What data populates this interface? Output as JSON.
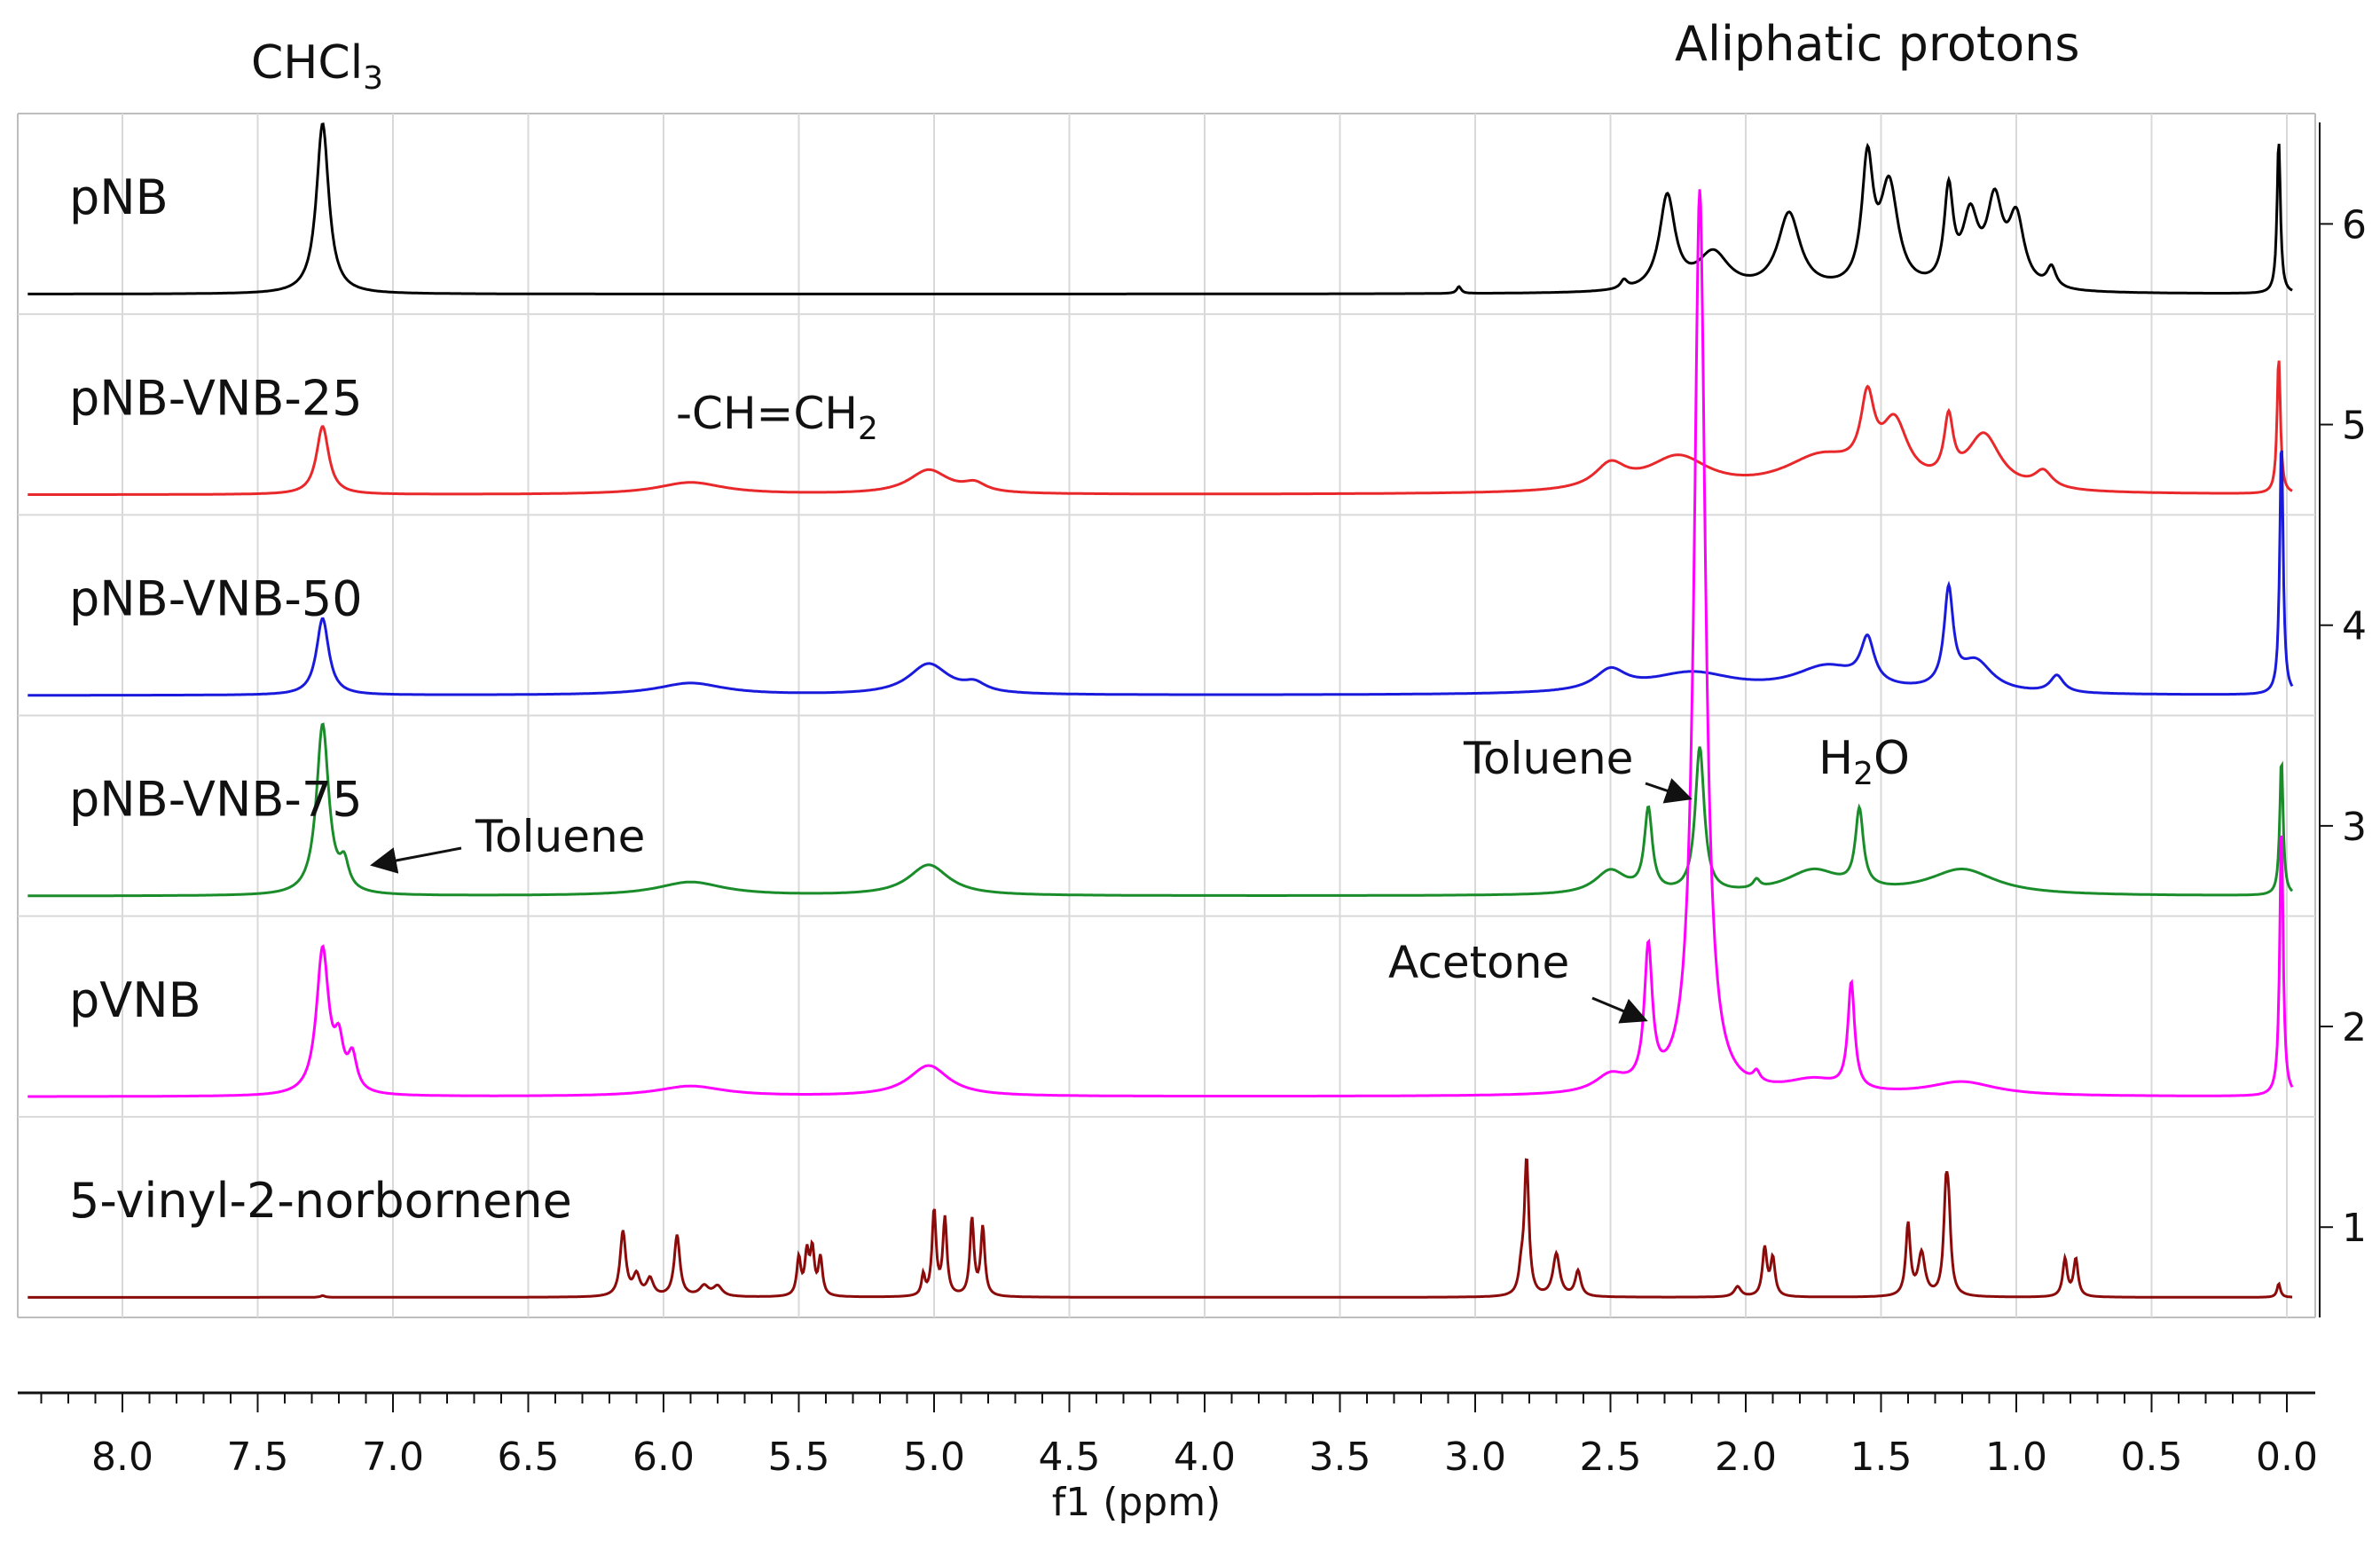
{
  "chart_data": {
    "type": "line",
    "title": "",
    "xlabel": "f1 (ppm)",
    "ylabel": "",
    "xlim": [
      8.35,
      -0.05
    ],
    "x_ticks": [
      "8.0",
      "7.5",
      "7.0",
      "6.5",
      "6.0",
      "5.5",
      "5.0",
      "4.5",
      "4.0",
      "3.5",
      "3.0",
      "2.5",
      "2.0",
      "1.5",
      "1.0",
      "0.5",
      "0.0"
    ],
    "x_tick_values": [
      8.0,
      7.5,
      7.0,
      6.5,
      6.0,
      5.5,
      5.0,
      4.5,
      4.0,
      3.5,
      3.0,
      2.5,
      2.0,
      1.5,
      1.0,
      0.5,
      0.0
    ],
    "right_ticks": [
      "1",
      "2",
      "3",
      "4",
      "5",
      "6"
    ],
    "grid": true,
    "series": [
      {
        "name": "pNB",
        "track": 6,
        "color": "#000000",
        "peaks": [
          [
            7.26,
            0.055,
            1.0
          ],
          [
            3.06,
            0.02,
            0.04
          ],
          [
            2.45,
            0.03,
            0.05
          ],
          [
            2.29,
            0.07,
            0.55
          ],
          [
            2.12,
            0.14,
            0.22
          ],
          [
            1.84,
            0.1,
            0.45
          ],
          [
            1.55,
            0.05,
            0.72
          ],
          [
            1.47,
            0.08,
            0.6
          ],
          [
            1.25,
            0.04,
            0.55
          ],
          [
            1.17,
            0.07,
            0.4
          ],
          [
            1.08,
            0.07,
            0.48
          ],
          [
            1.0,
            0.07,
            0.4
          ],
          [
            0.87,
            0.04,
            0.12
          ],
          [
            0.03,
            0.015,
            0.9
          ]
        ]
      },
      {
        "name": "pNB-VNB-25",
        "track": 5,
        "color": "#e8282a",
        "peaks": [
          [
            7.26,
            0.055,
            0.4
          ],
          [
            5.9,
            0.3,
            0.07
          ],
          [
            5.02,
            0.18,
            0.14
          ],
          [
            4.85,
            0.1,
            0.05
          ],
          [
            2.5,
            0.14,
            0.14
          ],
          [
            2.25,
            0.28,
            0.2
          ],
          [
            1.72,
            0.35,
            0.2
          ],
          [
            1.55,
            0.06,
            0.42
          ],
          [
            1.45,
            0.12,
            0.35
          ],
          [
            1.25,
            0.04,
            0.35
          ],
          [
            1.12,
            0.15,
            0.32
          ],
          [
            0.9,
            0.08,
            0.1
          ],
          [
            0.03,
            0.015,
            0.8
          ]
        ]
      },
      {
        "name": "pNB-VNB-50",
        "track": 4,
        "color": "#1a1adc",
        "peaks": [
          [
            7.26,
            0.055,
            0.45
          ],
          [
            5.9,
            0.3,
            0.07
          ],
          [
            5.02,
            0.18,
            0.18
          ],
          [
            4.85,
            0.1,
            0.05
          ],
          [
            2.5,
            0.14,
            0.12
          ],
          [
            2.2,
            0.4,
            0.12
          ],
          [
            1.7,
            0.3,
            0.15
          ],
          [
            1.55,
            0.06,
            0.26
          ],
          [
            1.25,
            0.04,
            0.56
          ],
          [
            1.15,
            0.15,
            0.18
          ],
          [
            0.85,
            0.06,
            0.1
          ],
          [
            0.02,
            0.015,
            1.5
          ]
        ]
      },
      {
        "name": "pNB-VNB-75",
        "track": 3,
        "color": "#1a8c2a",
        "peaks": [
          [
            7.26,
            0.055,
            1.0
          ],
          [
            7.18,
            0.04,
            0.15
          ],
          [
            5.9,
            0.3,
            0.08
          ],
          [
            5.02,
            0.18,
            0.18
          ],
          [
            2.5,
            0.14,
            0.14
          ],
          [
            2.36,
            0.035,
            0.48
          ],
          [
            2.17,
            0.04,
            0.85
          ],
          [
            1.96,
            0.03,
            0.05
          ],
          [
            1.75,
            0.25,
            0.14
          ],
          [
            1.58,
            0.035,
            0.45
          ],
          [
            1.2,
            0.3,
            0.15
          ],
          [
            0.02,
            0.015,
            0.8
          ]
        ]
      },
      {
        "name": "pVNB",
        "track": 2,
        "color": "#ff00ff",
        "peaks": [
          [
            7.26,
            0.055,
            0.85
          ],
          [
            7.2,
            0.04,
            0.25
          ],
          [
            7.15,
            0.04,
            0.2
          ],
          [
            5.9,
            0.3,
            0.06
          ],
          [
            5.02,
            0.18,
            0.18
          ],
          [
            2.5,
            0.14,
            0.1
          ],
          [
            2.36,
            0.035,
            0.8
          ],
          [
            2.17,
            0.05,
            5.3
          ],
          [
            1.96,
            0.03,
            0.06
          ],
          [
            1.75,
            0.25,
            0.08
          ],
          [
            1.61,
            0.03,
            0.62
          ],
          [
            1.2,
            0.3,
            0.08
          ],
          [
            0.02,
            0.015,
            1.6
          ]
        ]
      },
      {
        "name": "5-vinyl-2-norbornene",
        "track": 1,
        "color": "#8b0a0a",
        "peaks": [
          [
            7.26,
            0.02,
            0.01
          ],
          [
            6.15,
            0.025,
            0.38
          ],
          [
            6.1,
            0.03,
            0.12
          ],
          [
            6.05,
            0.03,
            0.1
          ],
          [
            5.95,
            0.025,
            0.36
          ],
          [
            5.85,
            0.04,
            0.06
          ],
          [
            5.8,
            0.04,
            0.06
          ],
          [
            5.5,
            0.018,
            0.22
          ],
          [
            5.47,
            0.018,
            0.24
          ],
          [
            5.45,
            0.018,
            0.26
          ],
          [
            5.42,
            0.018,
            0.22
          ],
          [
            5.04,
            0.015,
            0.12
          ],
          [
            5.0,
            0.018,
            0.5
          ],
          [
            4.96,
            0.018,
            0.45
          ],
          [
            4.86,
            0.018,
            0.45
          ],
          [
            4.82,
            0.018,
            0.4
          ],
          [
            2.83,
            0.02,
            0.12
          ],
          [
            2.81,
            0.02,
            0.8
          ],
          [
            2.7,
            0.03,
            0.25
          ],
          [
            2.62,
            0.025,
            0.15
          ],
          [
            2.03,
            0.03,
            0.06
          ],
          [
            1.93,
            0.02,
            0.28
          ],
          [
            1.9,
            0.02,
            0.22
          ],
          [
            1.4,
            0.02,
            0.42
          ],
          [
            1.35,
            0.03,
            0.25
          ],
          [
            1.26,
            0.02,
            0.52
          ],
          [
            1.25,
            0.02,
            0.38
          ],
          [
            0.82,
            0.02,
            0.22
          ],
          [
            0.78,
            0.02,
            0.22
          ],
          [
            0.03,
            0.015,
            0.08
          ]
        ]
      }
    ],
    "annotations": {
      "chcl3": "CHCl",
      "chcl3_sub": "3",
      "aliphatic": "Aliphatic protons",
      "vinyl_a": "-CH=CH",
      "vinyl_sub": "2",
      "toluene_left": "Toluene",
      "toluene_right": "Toluene",
      "water_h": "H",
      "water_sub": "2",
      "water_o": "O",
      "acetone": "Acetone"
    }
  }
}
